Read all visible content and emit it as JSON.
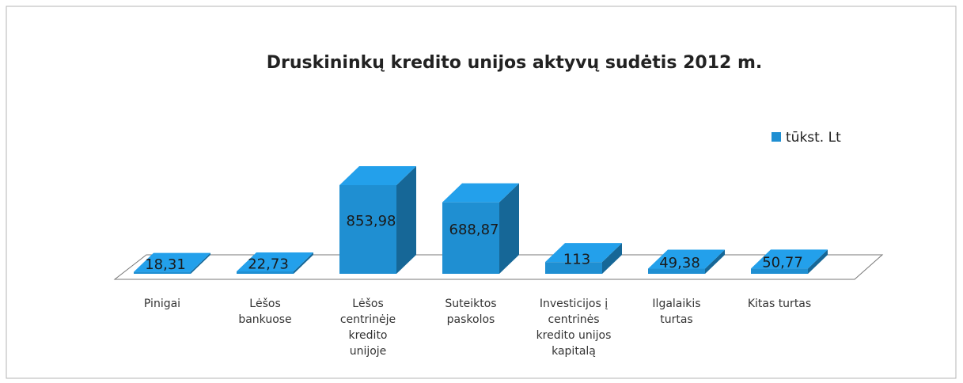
{
  "chart_data": {
    "type": "bar3d",
    "title": "Druskininkų kredito unijos aktyvų sudėtis 2012 m.",
    "categories": [
      "Pinigai",
      "Lėšos bankuose",
      "Lėšos centrinėje kredito unijoje",
      "Suteiktos paskolos",
      "Investicijos į centrinės kredito unijos kapitalą",
      "Ilgalaikis turtas",
      "Kitas turtas"
    ],
    "series": [
      {
        "name": "tūkst. Lt",
        "color": "#1f8fd2",
        "values": [
          18.31,
          22.73,
          853.98,
          688.87,
          113,
          49.38,
          50.77
        ],
        "value_labels": [
          "18,31",
          "22,73",
          "853,98",
          "688,87",
          "113",
          "49,38",
          "50,77"
        ]
      }
    ],
    "legend": "right"
  }
}
